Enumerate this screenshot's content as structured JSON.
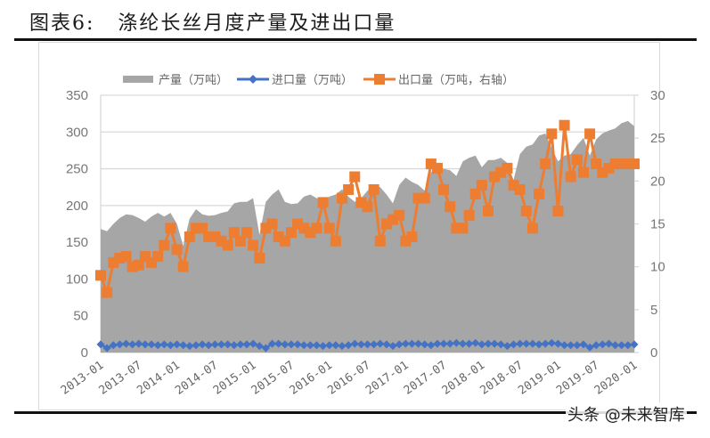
{
  "header": {
    "figure_label": "图表6:",
    "title": "涤纶长丝月度产量及进出口量"
  },
  "watermark": "头条 @未来智库",
  "colors": {
    "production": "#a6a6a6",
    "imports": "#4472c4",
    "exports": "#ed7d31",
    "grid": "#d9d9d9",
    "tick_text": "#777777"
  },
  "chart_data": {
    "type": "area+line",
    "title": "涤纶长丝月度产量及进出口量",
    "legend": {
      "position": "top",
      "entries": [
        "产量（万吨）",
        "进口量（万吨）",
        "出口量（万吨，右轴）"
      ]
    },
    "x_tick_labels": [
      "2013-01",
      "2013-07",
      "2014-01",
      "2014-07",
      "2015-01",
      "2015-07",
      "2016-01",
      "2016-07",
      "2017-01",
      "2017-07",
      "2018-01",
      "2018-07",
      "2019-01",
      "2019-07",
      "2020-01"
    ],
    "x_start": "2013-01",
    "x_end": "2020-01",
    "frequency": "monthly",
    "y_left": {
      "label": "万吨",
      "range": [
        0,
        350
      ],
      "ticks": [
        0,
        50,
        100,
        150,
        200,
        250,
        300,
        350
      ]
    },
    "y_right": {
      "label": "万吨",
      "range": [
        0,
        30
      ],
      "ticks": [
        0,
        5,
        10,
        15,
        20,
        25,
        30
      ]
    },
    "grid": true,
    "series": [
      {
        "name": "产量（万吨）",
        "axis": "left",
        "type": "area",
        "values": [
          168,
          165,
          175,
          183,
          188,
          187,
          183,
          178,
          185,
          190,
          185,
          190,
          175,
          145,
          182,
          195,
          188,
          186,
          187,
          190,
          192,
          203,
          205,
          205,
          210,
          160,
          205,
          215,
          222,
          205,
          202,
          203,
          212,
          215,
          210,
          207,
          212,
          215,
          222,
          212,
          205,
          210,
          220,
          228,
          225,
          215,
          203,
          228,
          238,
          232,
          228,
          220,
          245,
          255,
          250,
          248,
          240,
          260,
          265,
          268,
          252,
          262,
          262,
          265,
          258,
          235,
          270,
          280,
          283,
          295,
          298,
          278,
          260,
          268,
          270,
          282,
          292,
          268,
          290,
          298,
          302,
          305,
          312,
          315,
          308
        ]
      },
      {
        "name": "进口量（万吨）",
        "axis": "left",
        "type": "line",
        "marker": "diamond",
        "values": [
          11,
          6,
          10,
          11,
          12,
          11,
          12,
          11,
          11,
          10,
          11,
          10,
          11,
          10,
          9,
          10,
          11,
          10,
          11,
          11,
          11,
          10,
          11,
          11,
          12,
          9,
          6,
          12,
          12,
          11,
          11,
          11,
          10,
          10,
          10,
          9,
          10,
          10,
          9,
          10,
          12,
          11,
          11,
          11,
          12,
          11,
          9,
          11,
          12,
          12,
          12,
          11,
          10,
          12,
          12,
          12,
          13,
          12,
          12,
          13,
          11,
          12,
          12,
          11,
          9,
          11,
          12,
          12,
          12,
          11,
          12,
          13,
          12,
          10,
          10,
          10,
          11,
          7,
          10,
          11,
          12,
          10,
          10,
          10,
          11
        ]
      },
      {
        "name": "出口量（万吨，右轴）",
        "axis": "right",
        "type": "line",
        "marker": "square",
        "values": [
          9.0,
          7.0,
          10.5,
          11.0,
          11.2,
          10.0,
          10.2,
          11.2,
          10.5,
          11.2,
          12.5,
          14.5,
          12.0,
          10.0,
          13.5,
          14.5,
          14.5,
          13.5,
          13.5,
          13.0,
          12.5,
          14.0,
          13.0,
          14.0,
          12.5,
          11.0,
          14.5,
          15.0,
          13.5,
          13.0,
          14.0,
          15.0,
          14.5,
          14.0,
          14.5,
          17.5,
          14.5,
          13.0,
          18.0,
          19.0,
          20.5,
          17.5,
          17.0,
          19.0,
          13.0,
          15.0,
          15.5,
          16.0,
          13.0,
          13.5,
          18.0,
          18.0,
          22.0,
          21.5,
          19.0,
          17.0,
          14.5,
          14.5,
          16.0,
          18.5,
          19.5,
          16.5,
          20.5,
          21.0,
          21.5,
          19.5,
          19.0,
          16.5,
          14.5,
          18.5,
          22.0,
          25.5,
          16.5,
          26.5,
          20.5,
          22.5,
          21.0,
          25.5,
          22.0,
          21.0,
          21.5,
          22.0,
          22.0,
          22.0,
          22.0
        ]
      }
    ]
  }
}
